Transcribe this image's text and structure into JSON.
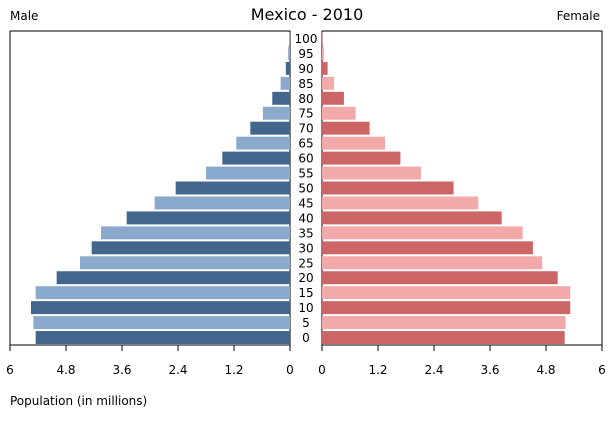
{
  "chart_data": {
    "type": "bar",
    "title": "Mexico - 2010",
    "left_label": "Male",
    "right_label": "Female",
    "xlabel": "Population (in millions)",
    "xlim": [
      0,
      6
    ],
    "ticks": [
      0,
      1.2,
      2.4,
      3.6,
      4.8,
      6
    ],
    "tick_labels": [
      "0",
      "1.2",
      "2.4",
      "3.6",
      "4.8",
      "6"
    ],
    "categories": [
      "0",
      "5",
      "10",
      "15",
      "20",
      "25",
      "30",
      "35",
      "40",
      "45",
      "50",
      "55",
      "60",
      "65",
      "70",
      "75",
      "80",
      "85",
      "90",
      "95",
      "100"
    ],
    "series": [
      {
        "name": "Male",
        "values": [
          5.45,
          5.5,
          5.55,
          5.45,
          5.0,
          4.5,
          4.25,
          4.05,
          3.5,
          2.9,
          2.45,
          1.8,
          1.45,
          1.15,
          0.85,
          0.58,
          0.38,
          0.2,
          0.09,
          0.04,
          0.01
        ]
      },
      {
        "name": "Female",
        "values": [
          5.2,
          5.22,
          5.32,
          5.32,
          5.05,
          4.72,
          4.52,
          4.3,
          3.85,
          3.35,
          2.82,
          2.12,
          1.68,
          1.35,
          1.02,
          0.72,
          0.47,
          0.26,
          0.12,
          0.04,
          0.01
        ]
      }
    ],
    "colors": {
      "male_dark": "#43678c",
      "male_light": "#8aa9cc",
      "female_dark": "#cc6666",
      "female_light": "#f2a9a9",
      "axis": "#000000"
    }
  }
}
